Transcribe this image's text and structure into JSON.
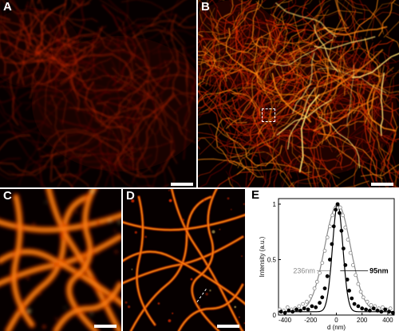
{
  "panels": {
    "a": {
      "label": "A"
    },
    "b": {
      "label": "B"
    },
    "c": {
      "label": "C"
    },
    "d": {
      "label": "D"
    },
    "e": {
      "label": "E"
    }
  },
  "colors": {
    "background": "#060000",
    "filament_dim": "#7a0a00",
    "filament_mid": "#d42a00",
    "filament_bright": "#ff8a10",
    "filament_peak": "#ffe070",
    "scalebar": "#ffffff",
    "widefield_curve": "#8a8a8a",
    "storm_curve": "#000000"
  },
  "chart_data": {
    "type": "scatter",
    "xlabel": "d (nm)",
    "ylabel": "Intensity (a.u.)",
    "xlim": [
      -450,
      450
    ],
    "ylim": [
      0,
      1.05
    ],
    "xticks": [
      -400,
      -200,
      0,
      200,
      400
    ],
    "yticks": [
      0,
      0.5,
      1
    ],
    "annotations": [
      {
        "text": "236nm",
        "x": -140,
        "y": 0.4,
        "side": "left",
        "series": "widefield"
      },
      {
        "text": "95nm",
        "x": 60,
        "y": 0.4,
        "side": "right",
        "series": "storm"
      }
    ],
    "series": [
      {
        "id": "widefield",
        "marker": "open-circle",
        "color": "#8a8a8a",
        "fit": {
          "type": "gaussian",
          "amplitude": 0.97,
          "center": 10,
          "fwhm": 236,
          "offset": 0.03
        },
        "points": [
          [
            -440,
            0.05
          ],
          [
            -410,
            0.04
          ],
          [
            -380,
            0.07
          ],
          [
            -350,
            0.05
          ],
          [
            -320,
            0.06
          ],
          [
            -290,
            0.08
          ],
          [
            -260,
            0.1
          ],
          [
            -230,
            0.12
          ],
          [
            -200,
            0.17
          ],
          [
            -170,
            0.24
          ],
          [
            -150,
            0.3
          ],
          [
            -130,
            0.38
          ],
          [
            -110,
            0.47
          ],
          [
            -90,
            0.58
          ],
          [
            -70,
            0.7
          ],
          [
            -50,
            0.8
          ],
          [
            -30,
            0.9
          ],
          [
            -10,
            0.96
          ],
          [
            10,
            1.0
          ],
          [
            30,
            0.97
          ],
          [
            50,
            0.9
          ],
          [
            70,
            0.79
          ],
          [
            90,
            0.68
          ],
          [
            110,
            0.56
          ],
          [
            130,
            0.45
          ],
          [
            150,
            0.36
          ],
          [
            170,
            0.28
          ],
          [
            190,
            0.21
          ],
          [
            210,
            0.16
          ],
          [
            240,
            0.12
          ],
          [
            270,
            0.09
          ],
          [
            300,
            0.08
          ],
          [
            330,
            0.06
          ],
          [
            360,
            0.07
          ],
          [
            390,
            0.05
          ],
          [
            420,
            0.06
          ]
        ]
      },
      {
        "id": "storm",
        "marker": "filled-circle",
        "color": "#000000",
        "fit": {
          "type": "gaussian",
          "amplitude": 0.97,
          "center": 10,
          "fwhm": 95,
          "offset": 0.03
        },
        "points": [
          [
            -430,
            0.03
          ],
          [
            -400,
            0.02
          ],
          [
            -370,
            0.04
          ],
          [
            -340,
            0.03
          ],
          [
            -310,
            0.05
          ],
          [
            -280,
            0.04
          ],
          [
            -250,
            0.06
          ],
          [
            -220,
            0.05
          ],
          [
            -190,
            0.08
          ],
          [
            -160,
            0.07
          ],
          [
            -130,
            0.11
          ],
          [
            -110,
            0.16
          ],
          [
            -90,
            0.24
          ],
          [
            -70,
            0.35
          ],
          [
            -50,
            0.5
          ],
          [
            -35,
            0.64
          ],
          [
            -20,
            0.8
          ],
          [
            -5,
            0.95
          ],
          [
            10,
            1.0
          ],
          [
            25,
            0.92
          ],
          [
            40,
            0.76
          ],
          [
            55,
            0.6
          ],
          [
            70,
            0.45
          ],
          [
            85,
            0.32
          ],
          [
            100,
            0.22
          ],
          [
            120,
            0.15
          ],
          [
            140,
            0.1
          ],
          [
            170,
            0.08
          ],
          [
            200,
            0.06
          ],
          [
            230,
            0.05
          ],
          [
            260,
            0.04
          ],
          [
            290,
            0.06
          ],
          [
            320,
            0.04
          ],
          [
            350,
            0.03
          ],
          [
            380,
            0.05
          ],
          [
            410,
            0.03
          ],
          [
            440,
            0.02
          ]
        ]
      }
    ]
  }
}
